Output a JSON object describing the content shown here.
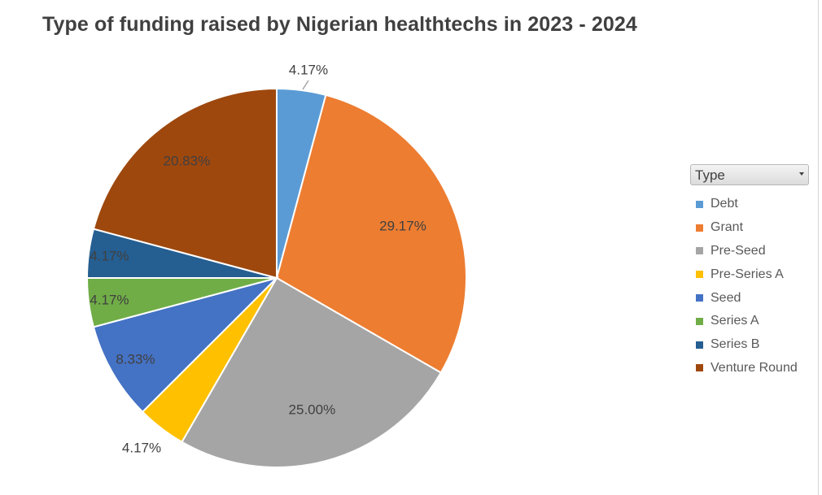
{
  "chart_data": {
    "type": "pie",
    "title": "Type of funding raised by Nigerian healthtechs in 2023 - 2024",
    "legend_title": "Type",
    "legend_position": "right",
    "slices": [
      {
        "label": "Debt",
        "value": 4.17,
        "display": "4.17%",
        "color": "#5B9BD5"
      },
      {
        "label": "Grant",
        "value": 29.17,
        "display": "29.17%",
        "color": "#ED7D31"
      },
      {
        "label": "Pre-Seed",
        "value": 25.0,
        "display": "25.00%",
        "color": "#A5A5A5"
      },
      {
        "label": "Pre-Series A",
        "value": 4.17,
        "display": "4.17%",
        "color": "#FFC000"
      },
      {
        "label": "Seed",
        "value": 8.33,
        "display": "8.33%",
        "color": "#4472C4"
      },
      {
        "label": "Series A",
        "value": 4.17,
        "display": "4.17%",
        "color": "#70AD47"
      },
      {
        "label": "Series B",
        "value": 4.17,
        "display": "4.17%",
        "color": "#255E91"
      },
      {
        "label": "Venture Round",
        "value": 20.83,
        "display": "20.83%",
        "color": "#9E480E"
      }
    ]
  }
}
